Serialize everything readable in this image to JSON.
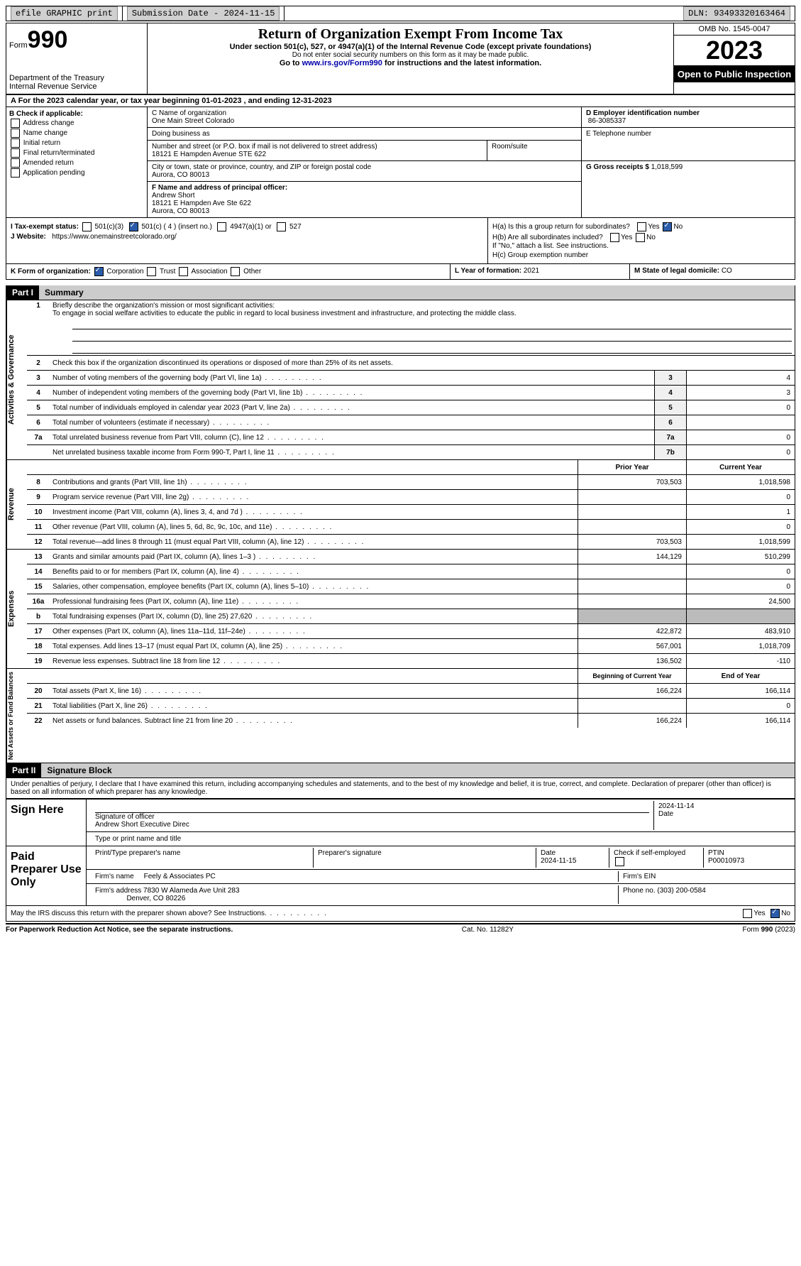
{
  "colors": {
    "black": "#000000",
    "white": "#ffffff",
    "gray_btn": "#d0d0d0",
    "gray_cell": "#bbbbbb",
    "checked_blue": "#2a5caa",
    "link": "#0000aa"
  },
  "topbar": {
    "efile": "efile GRAPHIC print",
    "submission": "Submission Date - 2024-11-15",
    "dln": "DLN: 93493320163464"
  },
  "header": {
    "form_word": "Form",
    "form_no": "990",
    "title": "Return of Organization Exempt From Income Tax",
    "subtitle": "Under section 501(c), 527, or 4947(a)(1) of the Internal Revenue Code (except private foundations)",
    "subtitle2": "Do not enter social security numbers on this form as it may be made public.",
    "goto_prefix": "Go to ",
    "goto_link": "www.irs.gov/Form990",
    "goto_suffix": " for instructions and the latest information.",
    "dept1": "Department of the Treasury",
    "dept2": "Internal Revenue Service",
    "omb": "OMB No. 1545-0047",
    "year": "2023",
    "open_public": "Open to Public Inspection"
  },
  "line_a": "A  For the 2023 calendar year, or tax year beginning 01-01-2023   , and ending 12-31-2023",
  "section_b": {
    "header": "B Check if applicable:",
    "items": [
      "Address change",
      "Name change",
      "Initial return",
      "Final return/terminated",
      "Amended return",
      "Application pending"
    ]
  },
  "section_c": {
    "name_label": "C Name of organization",
    "name": "One Main Street Colorado",
    "dba_label": "Doing business as",
    "dba": "",
    "addr_label": "Number and street (or P.O. box if mail is not delivered to street address)",
    "addr": "18121 E Hampden Avenue STE 622",
    "room_label": "Room/suite",
    "city_label": "City or town, state or province, country, and ZIP or foreign postal code",
    "city": "Aurora, CO  80013"
  },
  "section_d": {
    "ein_label": "D Employer identification number",
    "ein": "86-3085337",
    "phone_label": "E Telephone number",
    "phone": "",
    "gross_label": "G Gross receipts $",
    "gross": "1,018,599"
  },
  "section_f": {
    "label": "F  Name and address of principal officer:",
    "name": "Andrew Short",
    "addr": "18121 E Hampden Ave Ste 622",
    "city": "Aurora, CO  80013"
  },
  "section_h": {
    "ha_label": "H(a)  Is this a group return for subordinates?",
    "ha_yes": "Yes",
    "ha_no": "No",
    "hb_label": "H(b)  Are all subordinates included?",
    "hb_note": "If \"No,\" attach a list. See instructions.",
    "hc_label": "H(c)  Group exemption number"
  },
  "section_i": {
    "label": "I   Tax-exempt status:",
    "opt1": "501(c)(3)",
    "opt2": "501(c) ( 4 ) (insert no.)",
    "opt3": "4947(a)(1) or",
    "opt4": "527"
  },
  "section_j": {
    "label": "J   Website:",
    "value": "https://www.onemainstreetcolorado.org/"
  },
  "section_k": {
    "label": "K Form of organization:",
    "opts": [
      "Corporation",
      "Trust",
      "Association",
      "Other"
    ]
  },
  "section_l": {
    "label": "L Year of formation:",
    "value": "2021"
  },
  "section_m": {
    "label": "M State of legal domicile:",
    "value": "CO"
  },
  "part1": {
    "header": "Part I",
    "title": "Summary",
    "q1_label": "Briefly describe the organization's mission or most significant activities:",
    "q1_text": "To engage in social welfare activities to educate the public in regard to local business investment and infrastructure, and protecting the middle class.",
    "q2": "Check this box      if the organization discontinued its operations or disposed of more than 25% of its net assets.",
    "governance": {
      "rows": [
        {
          "n": "3",
          "label": "Number of voting members of the governing body (Part VI, line 1a)",
          "box": "3",
          "val": "4"
        },
        {
          "n": "4",
          "label": "Number of independent voting members of the governing body (Part VI, line 1b)",
          "box": "4",
          "val": "3"
        },
        {
          "n": "5",
          "label": "Total number of individuals employed in calendar year 2023 (Part V, line 2a)",
          "box": "5",
          "val": "0"
        },
        {
          "n": "6",
          "label": "Total number of volunteers (estimate if necessary)",
          "box": "6",
          "val": ""
        },
        {
          "n": "7a",
          "label": "Total unrelated business revenue from Part VIII, column (C), line 12",
          "box": "7a",
          "val": "0"
        },
        {
          "n": "",
          "label": "Net unrelated business taxable income from Form 990-T, Part I, line 11",
          "box": "7b",
          "val": "0"
        }
      ]
    },
    "two_col_header": {
      "prior": "Prior Year",
      "current": "Current Year"
    },
    "revenue": [
      {
        "n": "8",
        "label": "Contributions and grants (Part VIII, line 1h)",
        "prior": "703,503",
        "current": "1,018,598"
      },
      {
        "n": "9",
        "label": "Program service revenue (Part VIII, line 2g)",
        "prior": "",
        "current": "0"
      },
      {
        "n": "10",
        "label": "Investment income (Part VIII, column (A), lines 3, 4, and 7d )",
        "prior": "",
        "current": "1"
      },
      {
        "n": "11",
        "label": "Other revenue (Part VIII, column (A), lines 5, 6d, 8c, 9c, 10c, and 11e)",
        "prior": "",
        "current": "0"
      },
      {
        "n": "12",
        "label": "Total revenue—add lines 8 through 11 (must equal Part VIII, column (A), line 12)",
        "prior": "703,503",
        "current": "1,018,599"
      }
    ],
    "expenses": [
      {
        "n": "13",
        "label": "Grants and similar amounts paid (Part IX, column (A), lines 1–3 )",
        "prior": "144,129",
        "current": "510,299"
      },
      {
        "n": "14",
        "label": "Benefits paid to or for members (Part IX, column (A), line 4)",
        "prior": "",
        "current": "0"
      },
      {
        "n": "15",
        "label": "Salaries, other compensation, employee benefits (Part IX, column (A), lines 5–10)",
        "prior": "",
        "current": "0"
      },
      {
        "n": "16a",
        "label": "Professional fundraising fees (Part IX, column (A), line 11e)",
        "prior": "",
        "current": "24,500"
      },
      {
        "n": "b",
        "label": "Total fundraising expenses (Part IX, column (D), line 25) 27,620",
        "prior": "shaded",
        "current": "shaded"
      },
      {
        "n": "17",
        "label": "Other expenses (Part IX, column (A), lines 11a–11d, 11f–24e)",
        "prior": "422,872",
        "current": "483,910"
      },
      {
        "n": "18",
        "label": "Total expenses. Add lines 13–17 (must equal Part IX, column (A), line 25)",
        "prior": "567,001",
        "current": "1,018,709"
      },
      {
        "n": "19",
        "label": "Revenue less expenses. Subtract line 18 from line 12",
        "prior": "136,502",
        "current": "-110"
      }
    ],
    "netassets_header": {
      "prior": "Beginning of Current Year",
      "current": "End of Year"
    },
    "netassets": [
      {
        "n": "20",
        "label": "Total assets (Part X, line 16)",
        "prior": "166,224",
        "current": "166,114"
      },
      {
        "n": "21",
        "label": "Total liabilities (Part X, line 26)",
        "prior": "",
        "current": "0"
      },
      {
        "n": "22",
        "label": "Net assets or fund balances. Subtract line 21 from line 20",
        "prior": "166,224",
        "current": "166,114"
      }
    ],
    "vert_labels": {
      "gov": "Activities & Governance",
      "rev": "Revenue",
      "exp": "Expenses",
      "net": "Net Assets or Fund Balances"
    }
  },
  "part2": {
    "header": "Part II",
    "title": "Signature Block",
    "declaration": "Under penalties of perjury, I declare that I have examined this return, including accompanying schedules and statements, and to the best of my knowledge and belief, it is true, correct, and complete. Declaration of preparer (other than officer) is based on all information of which preparer has any knowledge.",
    "sign_here": "Sign Here",
    "sig_officer_label": "Signature of officer",
    "sig_date": "2024-11-14",
    "officer_name": "Andrew Short  Executive Direc",
    "type_label": "Type or print name and title",
    "paid_preparer": "Paid Preparer Use Only",
    "prep_name_label": "Print/Type preparer's name",
    "prep_sig_label": "Preparer's signature",
    "prep_date_label": "Date",
    "prep_date": "2024-11-15",
    "check_self": "Check       if self-employed",
    "ptin_label": "PTIN",
    "ptin": "P00010973",
    "firm_name_label": "Firm's name",
    "firm_name": "Feely & Associates PC",
    "firm_ein_label": "Firm's EIN",
    "firm_addr_label": "Firm's address",
    "firm_addr": "7830 W Alameda Ave Unit 283",
    "firm_city": "Denver, CO  80226",
    "firm_phone_label": "Phone no.",
    "firm_phone": "(303) 200-0584",
    "may_irs": "May the IRS discuss this return with the preparer shown above? See Instructions.",
    "yes": "Yes",
    "no": "No"
  },
  "footer": {
    "paperwork": "For Paperwork Reduction Act Notice, see the separate instructions.",
    "cat": "Cat. No. 11282Y",
    "form": "Form 990 (2023)"
  }
}
